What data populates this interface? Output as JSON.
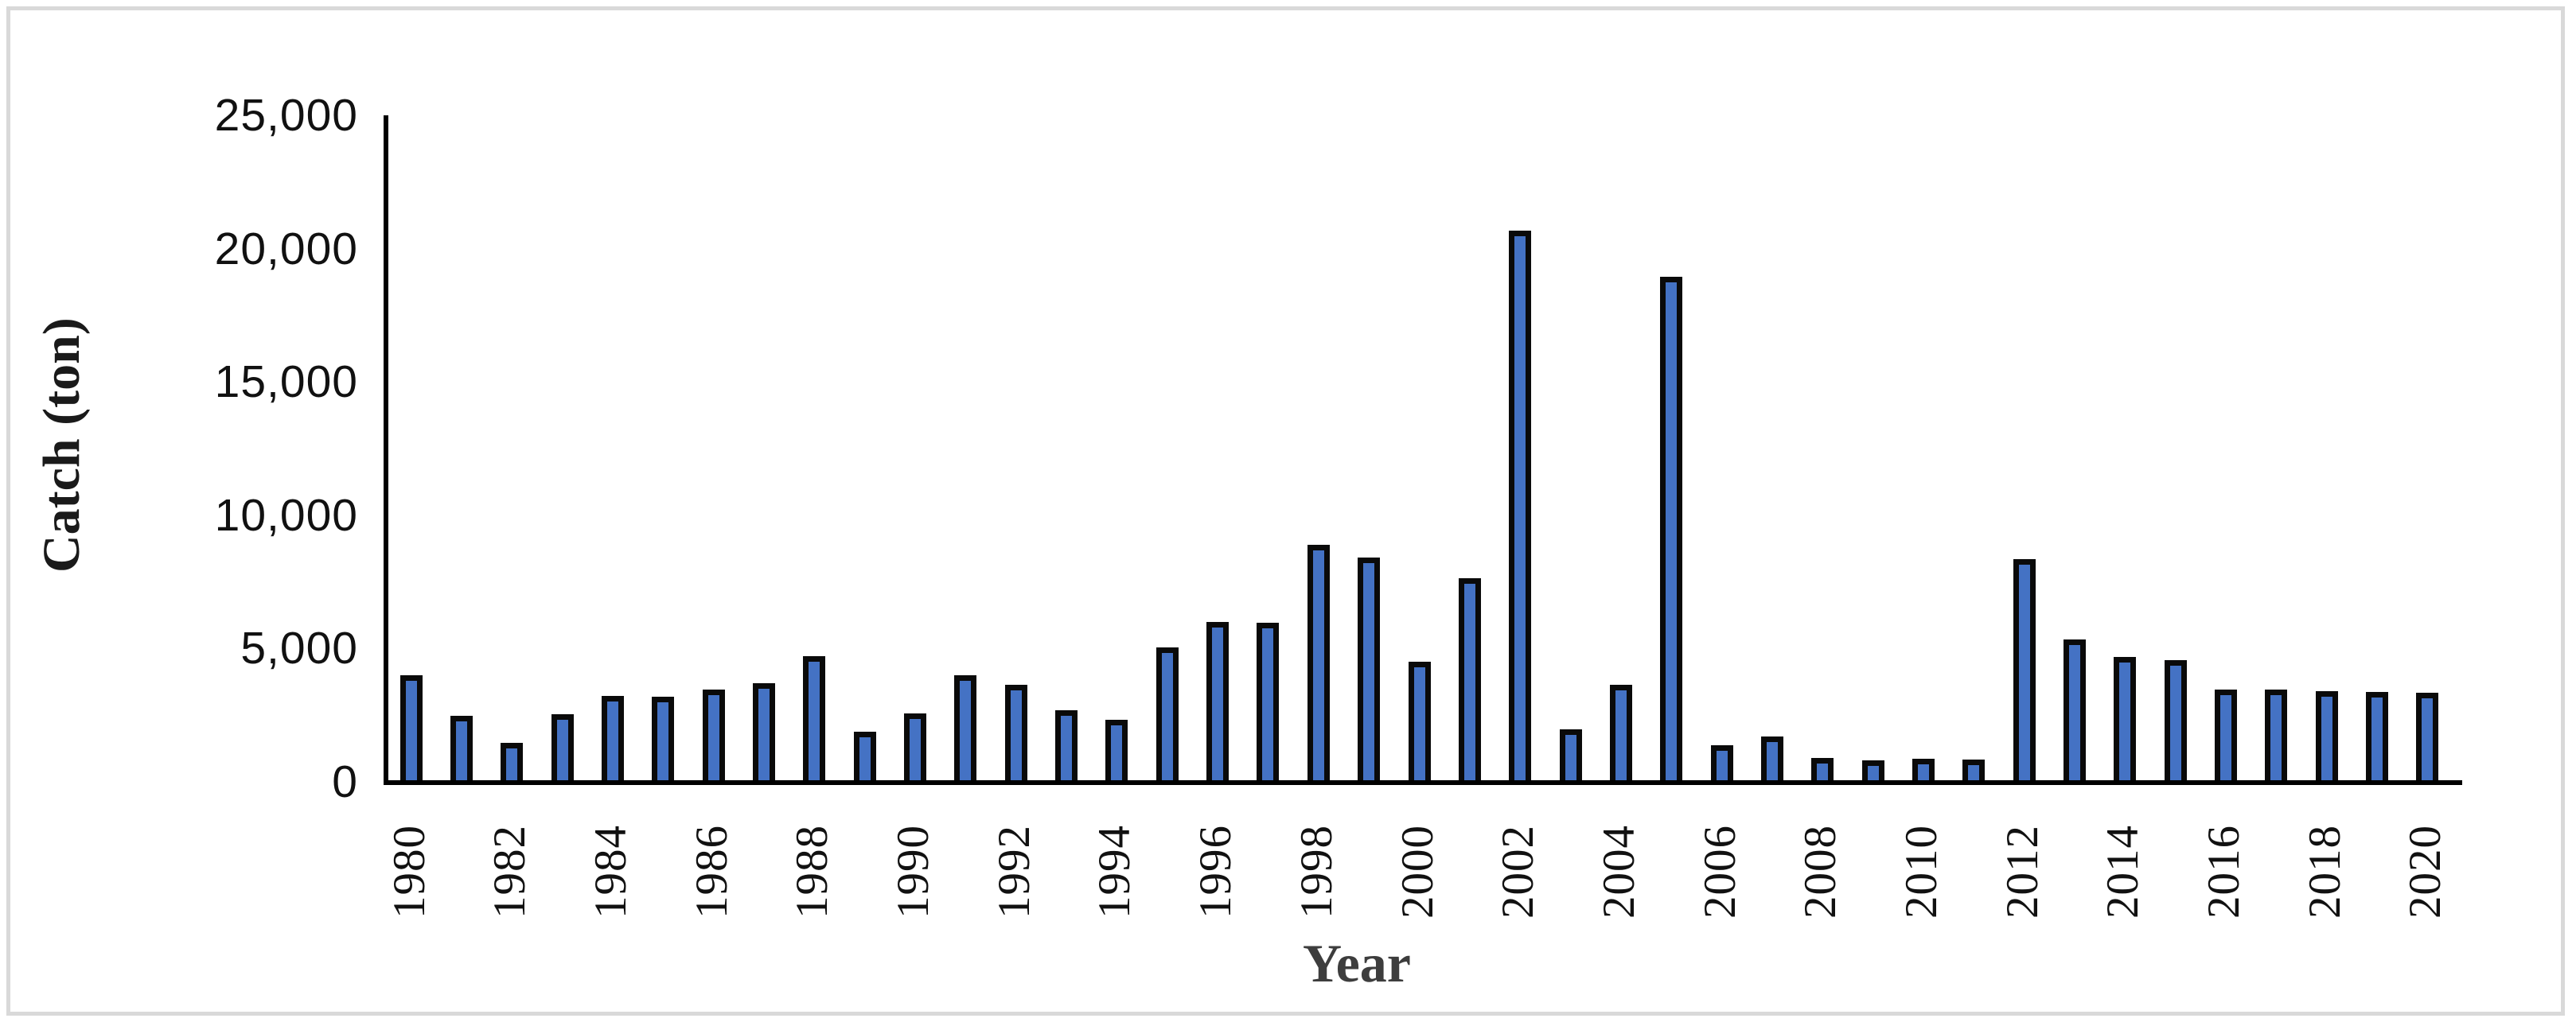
{
  "chart_data": {
    "type": "bar",
    "title": "",
    "xlabel": "Year",
    "ylabel": "Catch (ton)",
    "categories": [
      1980,
      1981,
      1982,
      1983,
      1984,
      1985,
      1986,
      1987,
      1988,
      1989,
      1990,
      1991,
      1992,
      1993,
      1994,
      1995,
      1996,
      1997,
      1998,
      1999,
      2000,
      2001,
      2002,
      2003,
      2004,
      2005,
      2006,
      2007,
      2008,
      2009,
      2010,
      2011,
      2012,
      2013,
      2014,
      2015,
      2016,
      2017,
      2018,
      2019,
      2020
    ],
    "values": [
      4000,
      2490,
      1460,
      2530,
      3230,
      3190,
      3450,
      3700,
      4700,
      1880,
      2570,
      4000,
      3650,
      2680,
      2330,
      5040,
      6000,
      5980,
      8890,
      8410,
      4500,
      7640,
      20670,
      1970,
      3640,
      18940,
      1370,
      1710,
      890,
      805,
      865,
      835,
      8350,
      5350,
      4680,
      4550,
      3470,
      3450,
      3390,
      3370,
      3350
    ],
    "ylim": [
      0,
      25000
    ],
    "yticks": [
      {
        "value": 0,
        "label": "0"
      },
      {
        "value": 5000,
        "label": "5,000"
      },
      {
        "value": 10000,
        "label": "10,000"
      },
      {
        "value": 15000,
        "label": "15,000"
      },
      {
        "value": 20000,
        "label": "20,000"
      },
      {
        "value": 25000,
        "label": "25,000"
      }
    ],
    "x_tick_labels": [
      "1980",
      "1982",
      "1984",
      "1986",
      "1988",
      "1990",
      "1992",
      "1994",
      "1996",
      "1998",
      "2000",
      "2002",
      "2004",
      "2006",
      "2008",
      "2010",
      "2012",
      "2014",
      "2016",
      "2018",
      "2020"
    ],
    "grid": false,
    "legend": "none",
    "bar_color": "#4472C4",
    "bar_border_color": "#0a0a0a",
    "axis_color": "#000000",
    "frame_color": "#d9d9d9"
  }
}
